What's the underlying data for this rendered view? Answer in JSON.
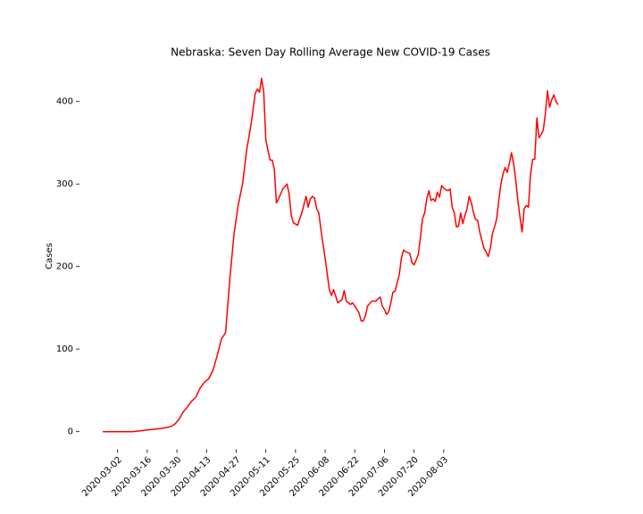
{
  "chart_data": {
    "type": "line",
    "title": "Nebraska: Seven Day Rolling Average New COVID-19 Cases",
    "ylabel": "Cases",
    "color": "#ff0000",
    "x": [
      "2020-02-24",
      "2020-03-02",
      "2020-03-09",
      "2020-03-16",
      "2020-03-23",
      "2020-03-25",
      "2020-03-27",
      "2020-03-29",
      "2020-03-31",
      "2020-04-02",
      "2020-04-04",
      "2020-04-06",
      "2020-04-08",
      "2020-04-10",
      "2020-04-12",
      "2020-04-14",
      "2020-04-16",
      "2020-04-18",
      "2020-04-20",
      "2020-04-22",
      "2020-04-24",
      "2020-04-26",
      "2020-04-28",
      "2020-04-30",
      "2020-05-02",
      "2020-05-04",
      "2020-05-06",
      "2020-05-07",
      "2020-05-08",
      "2020-05-09",
      "2020-05-10",
      "2020-05-11",
      "2020-05-13",
      "2020-05-14",
      "2020-05-15",
      "2020-05-16",
      "2020-05-17",
      "2020-05-19",
      "2020-05-21",
      "2020-05-22",
      "2020-05-23",
      "2020-05-24",
      "2020-05-26",
      "2020-05-27",
      "2020-05-28",
      "2020-05-29",
      "2020-05-30",
      "2020-05-31",
      "2020-06-01",
      "2020-06-02",
      "2020-06-03",
      "2020-06-04",
      "2020-06-05",
      "2020-06-06",
      "2020-06-08",
      "2020-06-10",
      "2020-06-11",
      "2020-06-12",
      "2020-06-14",
      "2020-06-16",
      "2020-06-17",
      "2020-06-18",
      "2020-06-20",
      "2020-06-21",
      "2020-06-22",
      "2020-06-24",
      "2020-06-25",
      "2020-06-26",
      "2020-06-27",
      "2020-06-28",
      "2020-06-30",
      "2020-07-02",
      "2020-07-03",
      "2020-07-04",
      "2020-07-05",
      "2020-07-06",
      "2020-07-07",
      "2020-07-08",
      "2020-07-09",
      "2020-07-10",
      "2020-07-11",
      "2020-07-12",
      "2020-07-13",
      "2020-07-14",
      "2020-07-15",
      "2020-07-16",
      "2020-07-18",
      "2020-07-19",
      "2020-07-20",
      "2020-07-21",
      "2020-07-22",
      "2020-07-23",
      "2020-07-24",
      "2020-07-25",
      "2020-07-26",
      "2020-07-27",
      "2020-07-28",
      "2020-07-29",
      "2020-07-30",
      "2020-07-31",
      "2020-08-01",
      "2020-08-02",
      "2020-08-03",
      "2020-08-04",
      "2020-08-05",
      "2020-08-06",
      "2020-08-07",
      "2020-08-08",
      "2020-08-09",
      "2020-08-10",
      "2020-08-11",
      "2020-08-12",
      "2020-08-13",
      "2020-08-14",
      "2020-08-15",
      "2020-08-16",
      "2020-08-17",
      "2020-08-18",
      "2020-08-19",
      "2020-08-20",
      "2020-08-21",
      "2020-08-22",
      "2020-08-23",
      "2020-08-24",
      "2020-08-25",
      "2020-08-26",
      "2020-08-27",
      "2020-08-28",
      "2020-08-29",
      "2020-08-30",
      "2020-08-31",
      "2020-09-01",
      "2020-09-02",
      "2020-09-03",
      "2020-09-04",
      "2020-09-05",
      "2020-09-06",
      "2020-09-07",
      "2020-09-08",
      "2020-09-09",
      "2020-09-10",
      "2020-09-11",
      "2020-09-12",
      "2020-09-13",
      "2020-09-14",
      "2020-09-15",
      "2020-09-16",
      "2020-09-17",
      "2020-09-18",
      "2020-09-19",
      "2020-09-20",
      "2020-09-21",
      "2020-09-22",
      "2020-09-23",
      "2020-09-24",
      "2020-09-25",
      "2020-09-26"
    ],
    "values": [
      0,
      0,
      0,
      2,
      4,
      5,
      6,
      9,
      15,
      24,
      30,
      37,
      42,
      53,
      60,
      64,
      74,
      92,
      112,
      120,
      185,
      240,
      275,
      300,
      342,
      372,
      410,
      415,
      411,
      428,
      412,
      353,
      329,
      329,
      318,
      277,
      282,
      294,
      300,
      288,
      262,
      253,
      250,
      258,
      265,
      275,
      285,
      272,
      282,
      285,
      283,
      270,
      265,
      245,
      210,
      172,
      165,
      172,
      156,
      160,
      171,
      158,
      154,
      156,
      152,
      144,
      134,
      134,
      140,
      152,
      158,
      158,
      161,
      163,
      152,
      148,
      142,
      145,
      156,
      169,
      170,
      180,
      190,
      210,
      220,
      218,
      216,
      205,
      202,
      208,
      215,
      235,
      258,
      265,
      282,
      292,
      280,
      282,
      279,
      290,
      284,
      298,
      295,
      293,
      292,
      294,
      272,
      265,
      248,
      249,
      265,
      252,
      262,
      270,
      285,
      278,
      266,
      257,
      256,
      242,
      232,
      222,
      218,
      212,
      222,
      240,
      248,
      258,
      280,
      300,
      312,
      320,
      314,
      325,
      338,
      325,
      305,
      280,
      260,
      242,
      270,
      274,
      272,
      312,
      330,
      330,
      380,
      356,
      360,
      365,
      385,
      413,
      393,
      402,
      408,
      400,
      396
    ],
    "xlim": [
      "2020-02-13",
      "2020-10-07"
    ],
    "xticks": [
      "2020-03-02",
      "2020-03-16",
      "2020-03-30",
      "2020-04-13",
      "2020-04-27",
      "2020-05-11",
      "2020-05-25",
      "2020-06-08",
      "2020-06-22",
      "2020-07-06",
      "2020-07-20",
      "2020-08-03"
    ],
    "ylim": [
      -21.4,
      449.4
    ],
    "yticks": [
      0,
      100,
      200,
      300,
      400
    ]
  }
}
